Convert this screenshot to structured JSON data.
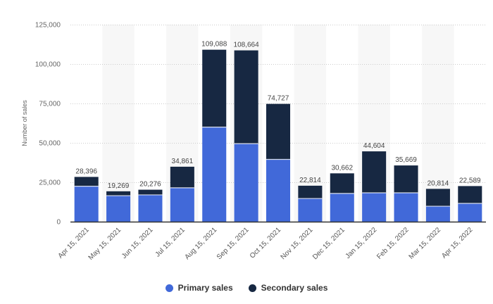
{
  "chart_data": {
    "type": "bar",
    "stacked": true,
    "title": "",
    "xlabel": "",
    "ylabel": "Number of sales",
    "ylim": [
      0,
      125000
    ],
    "yticks": [
      0,
      25000,
      50000,
      75000,
      100000,
      125000
    ],
    "ytick_labels": [
      "0",
      "25,000",
      "50,000",
      "75,000",
      "100,000",
      "125,000"
    ],
    "grid": true,
    "legend_position": "bottom",
    "categories": [
      "Apr 15, 2021",
      "May 15, 2021",
      "Jun 15, 2021",
      "Jul 15, 2021",
      "Aug 15, 2021",
      "Sep 15, 2021",
      "Oct 15, 2021",
      "Nov 15, 2021",
      "Dec 15, 2021",
      "Jan 15, 2022",
      "Feb 15, 2022",
      "Mar 15, 2022",
      "Apr 15, 2022"
    ],
    "series": [
      {
        "name": "Primary sales",
        "color": "#4169d9",
        "values": [
          22500,
          16500,
          17000,
          21500,
          60000,
          49500,
          39500,
          14700,
          17900,
          18300,
          18300,
          9800,
          11600
        ]
      },
      {
        "name": "Secondary sales",
        "color": "#172842",
        "values": [
          5896,
          2769,
          3276,
          13361,
          49088,
          59164,
          35227,
          8114,
          12762,
          26304,
          17369,
          11014,
          10989
        ]
      }
    ],
    "totals": [
      28396,
      19269,
      20276,
      34861,
      109088,
      108664,
      74727,
      22814,
      30662,
      44604,
      35669,
      20814,
      22589
    ],
    "total_labels": [
      "28,396",
      "19,269",
      "20,276",
      "34,861",
      "109,088",
      "108,664",
      "74,727",
      "22,814",
      "30,662",
      "44,604",
      "35,669",
      "20,814",
      "22,589"
    ]
  }
}
